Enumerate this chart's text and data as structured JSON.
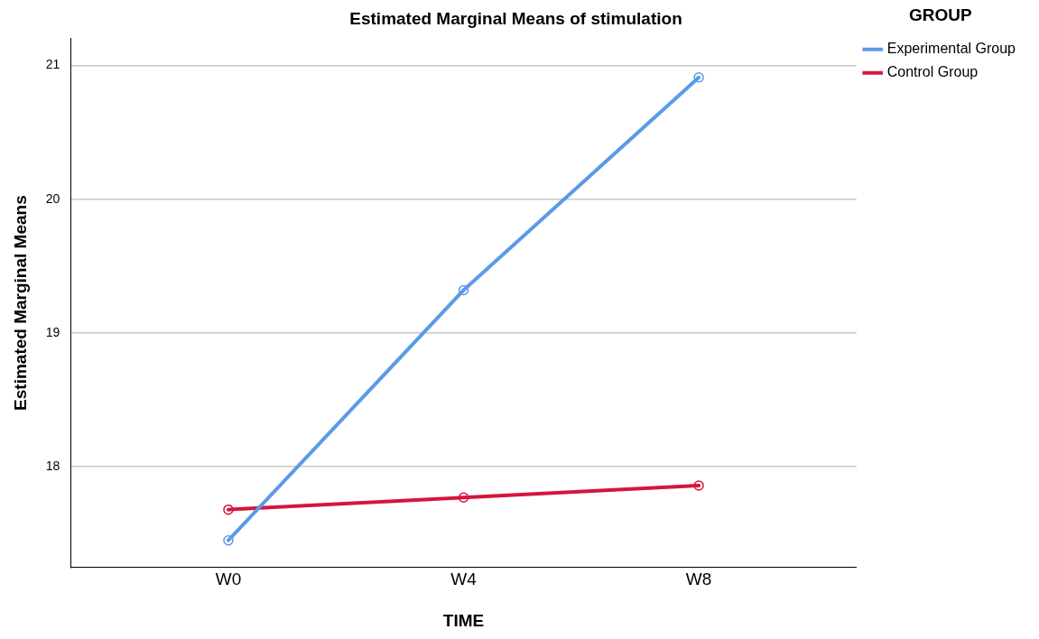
{
  "chart_data": {
    "type": "line",
    "title": "Estimated Marginal Means of stimulation",
    "xlabel": "TIME",
    "ylabel": "Estimated Marginal Means",
    "legend_title": "GROUP",
    "categories": [
      "W0",
      "W4",
      "W8"
    ],
    "series": [
      {
        "name": "Experimental Group",
        "color": "#5b9ae6",
        "values": [
          17.45,
          19.32,
          20.91
        ]
      },
      {
        "name": "Control Group",
        "color": "#d4163c",
        "values": [
          17.68,
          17.77,
          17.86
        ]
      }
    ],
    "ylim": [
      17.25,
      21.2
    ],
    "yticks": [
      18,
      19,
      20,
      21
    ],
    "grid": "y",
    "legend": "top right",
    "marker": "circle",
    "line_style": "solid"
  }
}
